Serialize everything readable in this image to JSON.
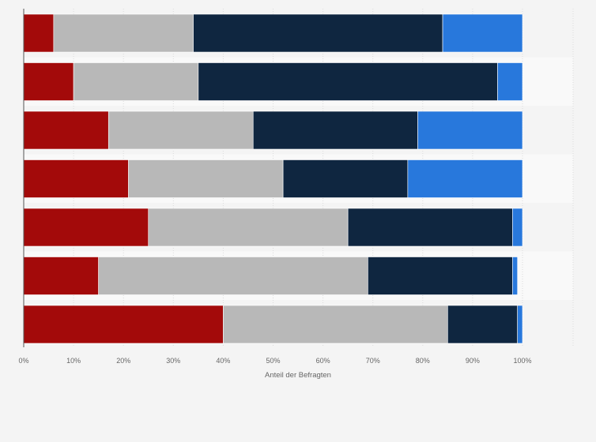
{
  "chart_data": {
    "type": "bar",
    "orientation": "horizontal",
    "stacked": true,
    "categories": [
      "",
      "",
      "",
      "",
      "",
      "",
      ""
    ],
    "series": [
      {
        "values": [
          6,
          10,
          17,
          21,
          25,
          15,
          40
        ]
      },
      {
        "values": [
          28,
          25,
          29,
          31,
          40,
          54,
          45
        ]
      },
      {
        "values": [
          50,
          60,
          33,
          25,
          33,
          29,
          14
        ]
      },
      {
        "values": [
          16,
          5,
          21,
          23,
          2,
          1,
          1
        ]
      }
    ],
    "colors": [
      "#a30a0a",
      "#b8b8b8",
      "#0f2640",
      "#2878dc"
    ],
    "xlim": [
      0,
      100
    ],
    "x_ticks": [
      "0%",
      "10%",
      "20%",
      "30%",
      "40%",
      "50%",
      "60%",
      "70%",
      "80%",
      "90%",
      "100%"
    ],
    "xlabel": "Anteil der Befragten",
    "grid": true,
    "legend": "none"
  }
}
